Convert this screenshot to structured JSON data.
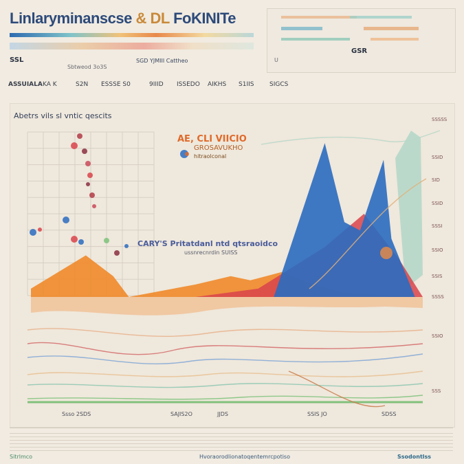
{
  "header": {
    "title_main": "Linlaryminanscse",
    "title_amp": "& DL",
    "title_tail": "FoKINITe",
    "left_code": "SSL",
    "left_sub": "Sbtweod  3o3S",
    "mid_label": "SGD  YJMIII  Cattheo",
    "right_panel_label": "GSR",
    "right_panel_sub": "U"
  },
  "row_labels": [
    "ASSUIALA",
    "KA  K",
    "S2N",
    "ESSSE  S0",
    "9IIID",
    "ISSEDO",
    "AIKHS",
    "S1IIS",
    "SIGCS"
  ],
  "chart": {
    "title": "Abetrs vils sl vntic qescits",
    "annotation_1": "AE, CLI VIICIO",
    "annotation_2": "GROSAVUKHO",
    "annotation_3": "hitraolconal",
    "annotation_mid": "CARY'S  Pritatdanl  ntd  qtsraoidco",
    "annotation_mid_sub": "ussnrecnrdin  SUISS"
  },
  "x_ticks": [
    "Ssso  2SDS",
    "SAJIS2O",
    "JJDS",
    "SSIS  JO",
    "SDSS"
  ],
  "y_ticks": [
    "SSSSS",
    "SSID",
    "SID",
    "SSID",
    "SSSI",
    "SSIO",
    "SSIS",
    "SSSS",
    "SSIO",
    "SSS"
  ],
  "footer": {
    "left": "Sitrlmco",
    "center": "Hvoraorodlionatoqentemrcpotiso",
    "right": "Ssodontlss"
  },
  "colors": {
    "orange": "#ef8a2a",
    "blue": "#2a6bc0",
    "red": "#d9434b",
    "teal": "#7cc7b5",
    "green": "#7cc27a"
  },
  "chart_data": {
    "type": "area",
    "title": "Abetrs vils sl vntic qescits",
    "xlabel": "",
    "ylabel": "",
    "categories": [
      "Ssso 2SDS",
      "SAJIS2O",
      "JJDS",
      "SSIS JO",
      "SDSS"
    ],
    "series": [
      {
        "name": "orange",
        "x": [
          0,
          14,
          21,
          25,
          42,
          51,
          56,
          64,
          72,
          80,
          100
        ],
        "values": [
          2,
          10,
          5,
          0,
          3,
          5,
          4,
          6,
          3,
          1,
          0
        ]
      },
      {
        "name": "red",
        "x": [
          42,
          58,
          75,
          85,
          94,
          100
        ],
        "values": [
          0,
          2,
          12,
          20,
          9,
          0
        ]
      },
      {
        "name": "blue",
        "x": [
          62,
          75,
          80,
          84,
          90,
          92,
          98
        ],
        "values": [
          0,
          37,
          18,
          16,
          33,
          14,
          0
        ]
      }
    ],
    "ylim": [
      0,
      40
    ],
    "xlim": [
      0,
      100
    ],
    "grid": true,
    "legend": "none"
  }
}
